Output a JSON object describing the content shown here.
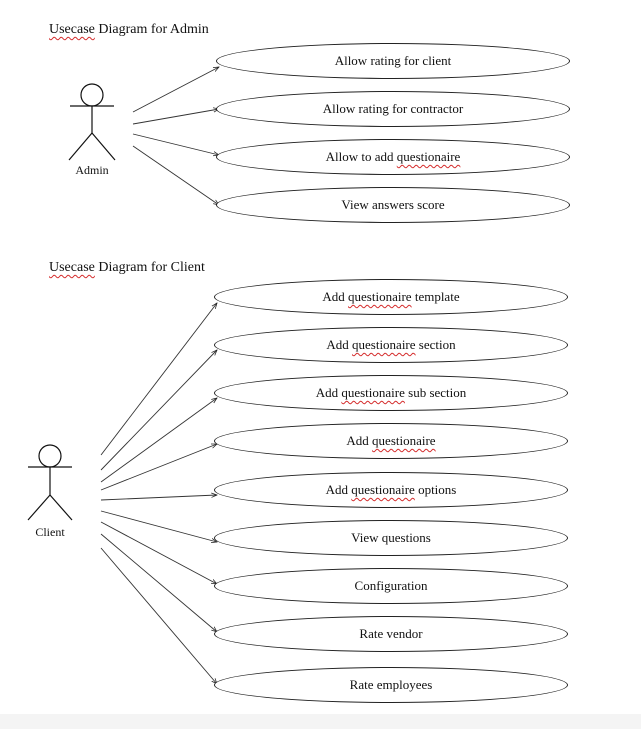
{
  "diagrams": {
    "admin": {
      "title_word": "Usecase",
      "title_rest": " Diagram for Admin",
      "actor": "Admin",
      "use_cases": [
        {
          "text": "Allow rating for client"
        },
        {
          "text": "Allow rating for contractor"
        },
        {
          "text": "Allow to add ",
          "marked": "questionaire"
        },
        {
          "text": "View answers score"
        }
      ]
    },
    "client": {
      "title_word": "Usecase",
      "title_rest": " Diagram for Client",
      "actor": "Client",
      "use_cases": [
        {
          "text": "Add ",
          "marked": "questionaire",
          "tail": " template"
        },
        {
          "text": "Add ",
          "marked": "questionaire",
          "tail": " section"
        },
        {
          "text": "Add ",
          "marked": "questionaire",
          "tail": " sub section"
        },
        {
          "text": "Add ",
          "marked": "questionaire"
        },
        {
          "text": "Add ",
          "marked": "questionaire",
          "tail": " options"
        },
        {
          "text": "View questions"
        },
        {
          "text": "Configuration"
        },
        {
          "text": "Rate vendor"
        },
        {
          "text": "Rate employees"
        }
      ]
    }
  }
}
